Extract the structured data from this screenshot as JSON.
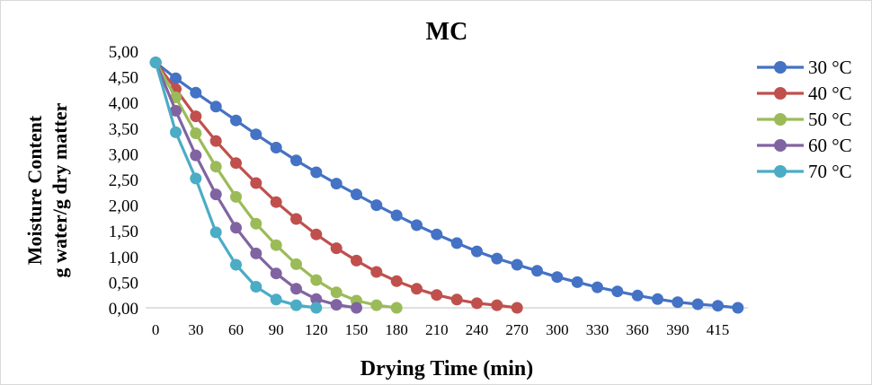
{
  "chart_data": {
    "type": "line",
    "title": "MC",
    "xlabel": "Drying Time (min)",
    "ylabel_lines": [
      "Moisture Content",
      "g water/g dry matter"
    ],
    "x_tick_labels": [
      "0",
      "30",
      "60",
      "90",
      "120",
      "150",
      "180",
      "210",
      "240",
      "270",
      "300",
      "330",
      "360",
      "390",
      "415"
    ],
    "y_tick_labels": [
      "0,00",
      "0,50",
      "1,00",
      "1,50",
      "2,00",
      "2,50",
      "3,00",
      "3,50",
      "4,00",
      "4,50",
      "5,00"
    ],
    "ylim": [
      0,
      5
    ],
    "grid": false,
    "legend_position": "right",
    "series": [
      {
        "name": "30 °C",
        "color": "#4472C4",
        "x": [
          0,
          15,
          30,
          45,
          60,
          75,
          90,
          105,
          120,
          135,
          150,
          165,
          180,
          195,
          210,
          225,
          240,
          255,
          270,
          285,
          300,
          315,
          330,
          345,
          360,
          375,
          390,
          405,
          420,
          435
        ],
        "y": [
          4.78,
          4.47,
          4.19,
          3.92,
          3.65,
          3.38,
          3.12,
          2.87,
          2.64,
          2.42,
          2.21,
          2.0,
          1.8,
          1.61,
          1.43,
          1.26,
          1.1,
          0.96,
          0.84,
          0.72,
          0.6,
          0.5,
          0.4,
          0.32,
          0.24,
          0.17,
          0.11,
          0.07,
          0.04,
          0.0
        ]
      },
      {
        "name": "40 °C",
        "color": "#C0504D",
        "x": [
          0,
          15,
          30,
          45,
          60,
          75,
          90,
          105,
          120,
          135,
          150,
          165,
          180,
          195,
          210,
          225,
          240,
          255,
          270
        ],
        "y": [
          4.78,
          4.26,
          3.73,
          3.25,
          2.82,
          2.43,
          2.06,
          1.73,
          1.43,
          1.16,
          0.92,
          0.7,
          0.52,
          0.37,
          0.25,
          0.16,
          0.09,
          0.05,
          0.0
        ]
      },
      {
        "name": "50 °C",
        "color": "#9BBB59",
        "x": [
          0,
          15,
          30,
          45,
          60,
          75,
          90,
          105,
          120,
          135,
          150,
          165,
          180
        ],
        "y": [
          4.78,
          4.1,
          3.4,
          2.75,
          2.16,
          1.64,
          1.22,
          0.85,
          0.54,
          0.3,
          0.14,
          0.05,
          0.0
        ]
      },
      {
        "name": "60 °C",
        "color": "#8064A2",
        "x": [
          0,
          15,
          30,
          45,
          60,
          75,
          90,
          105,
          120,
          135,
          150
        ],
        "y": [
          4.78,
          3.84,
          2.97,
          2.21,
          1.56,
          1.06,
          0.67,
          0.37,
          0.17,
          0.06,
          0.0
        ]
      },
      {
        "name": "70 °C",
        "color": "#4BACC6",
        "x": [
          0,
          15,
          30,
          45,
          60,
          75,
          90,
          105,
          120
        ],
        "y": [
          4.78,
          3.42,
          2.52,
          1.47,
          0.84,
          0.41,
          0.16,
          0.05,
          0.0
        ]
      }
    ]
  }
}
